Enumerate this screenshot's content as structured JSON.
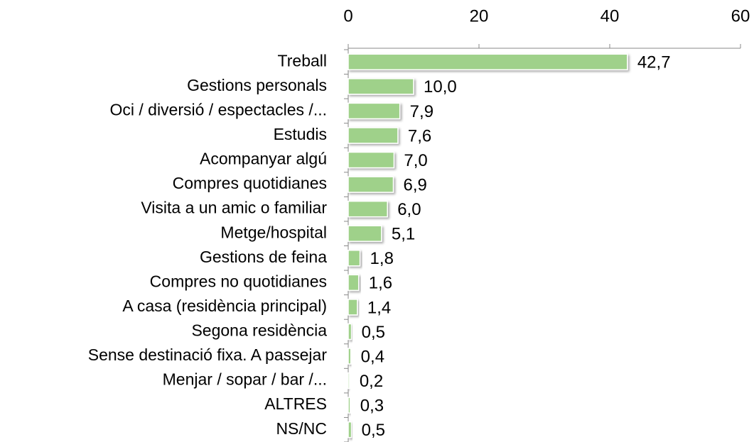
{
  "chart_data": {
    "type": "bar",
    "orientation": "horizontal",
    "categories": [
      "Treball",
      "Gestions personals",
      "Oci / diversió / espectacles /...",
      "Estudis",
      "Acompanyar algú",
      "Compres quotidianes",
      "Visita a un amic o familiar",
      "Metge/hospital",
      "Gestions de feina",
      "Compres no quotidianes",
      "A casa (residència principal)",
      "Segona residència",
      "Sense destinació fixa. A passejar",
      "Menjar / sopar / bar /...",
      "ALTRES",
      "NS/NC"
    ],
    "values": [
      42.7,
      10.0,
      7.9,
      7.6,
      7.0,
      6.9,
      6.0,
      5.1,
      1.8,
      1.6,
      1.4,
      0.5,
      0.4,
      0.2,
      0.3,
      0.5
    ],
    "value_labels": [
      "42,7",
      "10,0",
      "7,9",
      "7,6",
      "7,0",
      "6,9",
      "6,0",
      "5,1",
      "1,8",
      "1,6",
      "1,4",
      "0,5",
      "0,4",
      "0,2",
      "0,3",
      "0,5"
    ],
    "color": "#9fd18a",
    "xlim": [
      0,
      60
    ],
    "xticks": [
      0,
      20,
      40,
      60
    ],
    "grid": false
  }
}
